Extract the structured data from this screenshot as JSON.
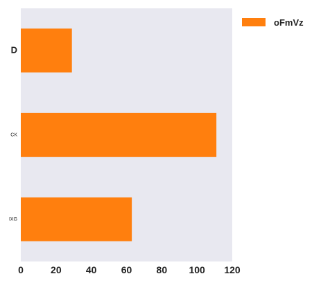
{
  "chart_data": {
    "type": "bar",
    "orientation": "horizontal",
    "categories": [
      "D",
      "CK",
      "IXG"
    ],
    "series": [
      {
        "name": "oFmVz",
        "values": [
          29,
          111,
          63
        ],
        "color": "#ff7f0e"
      }
    ],
    "xlim": [
      0,
      120
    ],
    "xticks": [
      "0",
      "20",
      "40",
      "60",
      "80",
      "100",
      "120"
    ],
    "grid": false,
    "legend_position": "top-right",
    "background_color": "#e8e8f0"
  }
}
